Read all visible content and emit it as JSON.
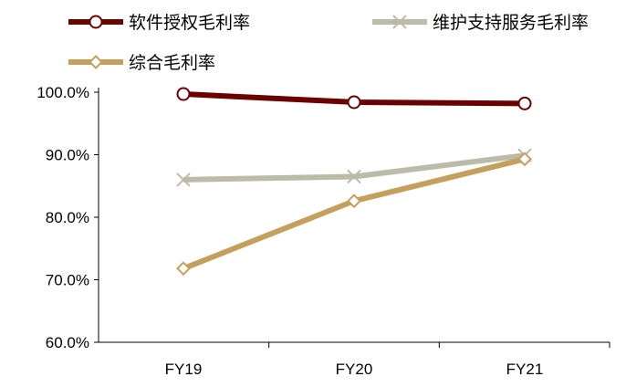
{
  "chart_data": {
    "type": "line",
    "categories": [
      "FY19",
      "FY20",
      "FY21"
    ],
    "ylim": [
      60,
      100
    ],
    "yticks": [
      "60.0%",
      "70.0%",
      "80.0%",
      "90.0%",
      "100.0%"
    ],
    "grid": false,
    "legend_placement": "top",
    "series": [
      {
        "name": "软件授权毛利率",
        "values": [
          99.7,
          98.4,
          98.2
        ],
        "color": "#6b0000",
        "marker": "circle"
      },
      {
        "name": "维护支持服务毛利率",
        "values": [
          86.0,
          86.5,
          89.9
        ],
        "color": "#bcbaa8",
        "marker": "x"
      },
      {
        "name": "综合毛利率",
        "values": [
          71.8,
          82.6,
          89.3
        ],
        "color": "#c4a05c",
        "marker": "diamond"
      }
    ]
  }
}
